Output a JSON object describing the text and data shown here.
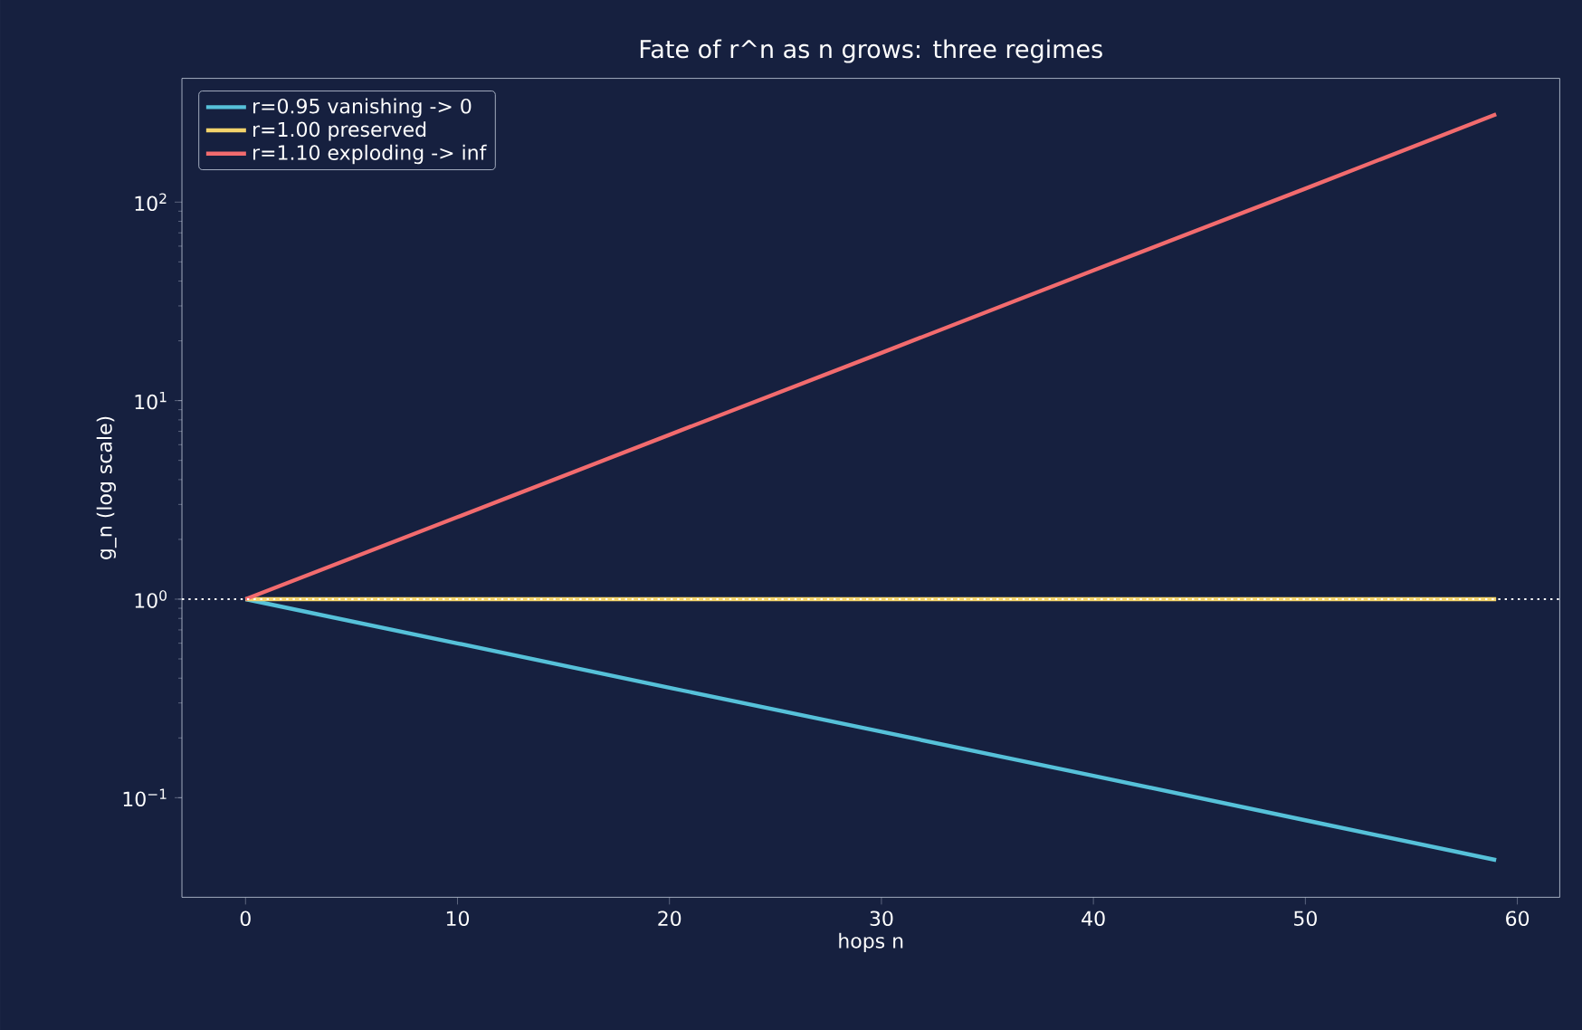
{
  "chart_data": {
    "type": "line",
    "title": "Fate of r^n as n grows: three regimes",
    "xlabel": "hops n",
    "ylabel": "g_n  (log scale)",
    "x": [
      0,
      10,
      20,
      30,
      40,
      50,
      59
    ],
    "series": [
      {
        "name": "r=0.95  vanishing -> 0",
        "color": "#56c1d9",
        "values": [
          1,
          0.599,
          0.358,
          0.215,
          0.129,
          0.077,
          0.0485
        ]
      },
      {
        "name": "r=1.00  preserved",
        "color": "#f3d36b",
        "values": [
          1,
          1,
          1,
          1,
          1,
          1,
          1
        ]
      },
      {
        "name": "r=1.10  exploding -> inf",
        "color": "#f26b6e",
        "values": [
          1,
          2.59,
          6.73,
          17.4,
          45.3,
          117,
          277
        ]
      }
    ],
    "log": "y",
    "legend": "top left",
    "xlim": [
      -3,
      62
    ],
    "xticks": [
      0,
      10,
      20,
      30,
      40,
      50,
      60
    ],
    "ylim": [
      0.0315,
      420
    ],
    "yticks": [
      {
        "value": 0.1,
        "label": "10$^{−1}$"
      },
      {
        "value": 1,
        "label": "10$^{0}$"
      },
      {
        "value": 10,
        "label": "10$^{1}$"
      },
      {
        "value": 100,
        "label": "10$^{2}$"
      }
    ],
    "ref_lines": [
      {
        "axis": "y",
        "value": 1,
        "color": "#ffffff",
        "line_style": "dotted"
      }
    ]
  }
}
